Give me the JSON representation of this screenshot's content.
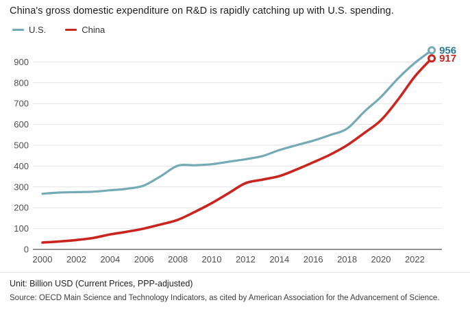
{
  "title": "China's gross domestic expenditure on R&D is rapidly catching up with U.S. spending.",
  "legend": [
    {
      "label": "U.S.",
      "color": "#74a9b6"
    },
    {
      "label": "China",
      "color": "#c9241d"
    }
  ],
  "chart_data": {
    "type": "line",
    "title": "China's gross domestic expenditure on R&D is rapidly catching up with U.S. spending.",
    "xlabel": "",
    "ylabel": "",
    "unit": "Billion USD (Current Prices, PPP-adjusted)",
    "x": [
      2000,
      2001,
      2002,
      2003,
      2004,
      2005,
      2006,
      2007,
      2008,
      2009,
      2010,
      2011,
      2012,
      2013,
      2014,
      2015,
      2016,
      2017,
      2018,
      2019,
      2020,
      2021,
      2022,
      2023
    ],
    "series": [
      {
        "name": "U.S.",
        "color": "#74a9b6",
        "label_color": "#2f7b92",
        "end_label": "956",
        "values": [
          267,
          273,
          275,
          277,
          284,
          291,
          307,
          352,
          402,
          404,
          409,
          421,
          433,
          448,
          477,
          500,
          522,
          549,
          580,
          660,
          732,
          820,
          895,
          956
        ]
      },
      {
        "name": "China",
        "color": "#c9241d",
        "label_color": "#c9241d",
        "end_label": "917",
        "values": [
          33,
          38,
          45,
          55,
          72,
          85,
          100,
          120,
          142,
          180,
          222,
          270,
          318,
          335,
          352,
          383,
          418,
          455,
          500,
          558,
          620,
          718,
          830,
          917
        ]
      }
    ],
    "xticks": [
      2000,
      2002,
      2004,
      2006,
      2008,
      2010,
      2012,
      2014,
      2016,
      2018,
      2020,
      2022
    ],
    "yticks": [
      0,
      100,
      200,
      300,
      400,
      500,
      600,
      700,
      800,
      900
    ],
    "ylim": [
      0,
      980
    ],
    "grid": true,
    "legend_position": "top-left"
  },
  "footer": {
    "unit": "Unit: Billion USD (Current Prices, PPP-adjusted)",
    "source": "Source: OECD Main Science and Technology Indicators, as cited by American Association for the Advancement of Science."
  },
  "colors": {
    "gridline": "#e3e3e3",
    "axis": "#929292",
    "tick_text": "#4f4f4f",
    "background": "#ffffff"
  }
}
